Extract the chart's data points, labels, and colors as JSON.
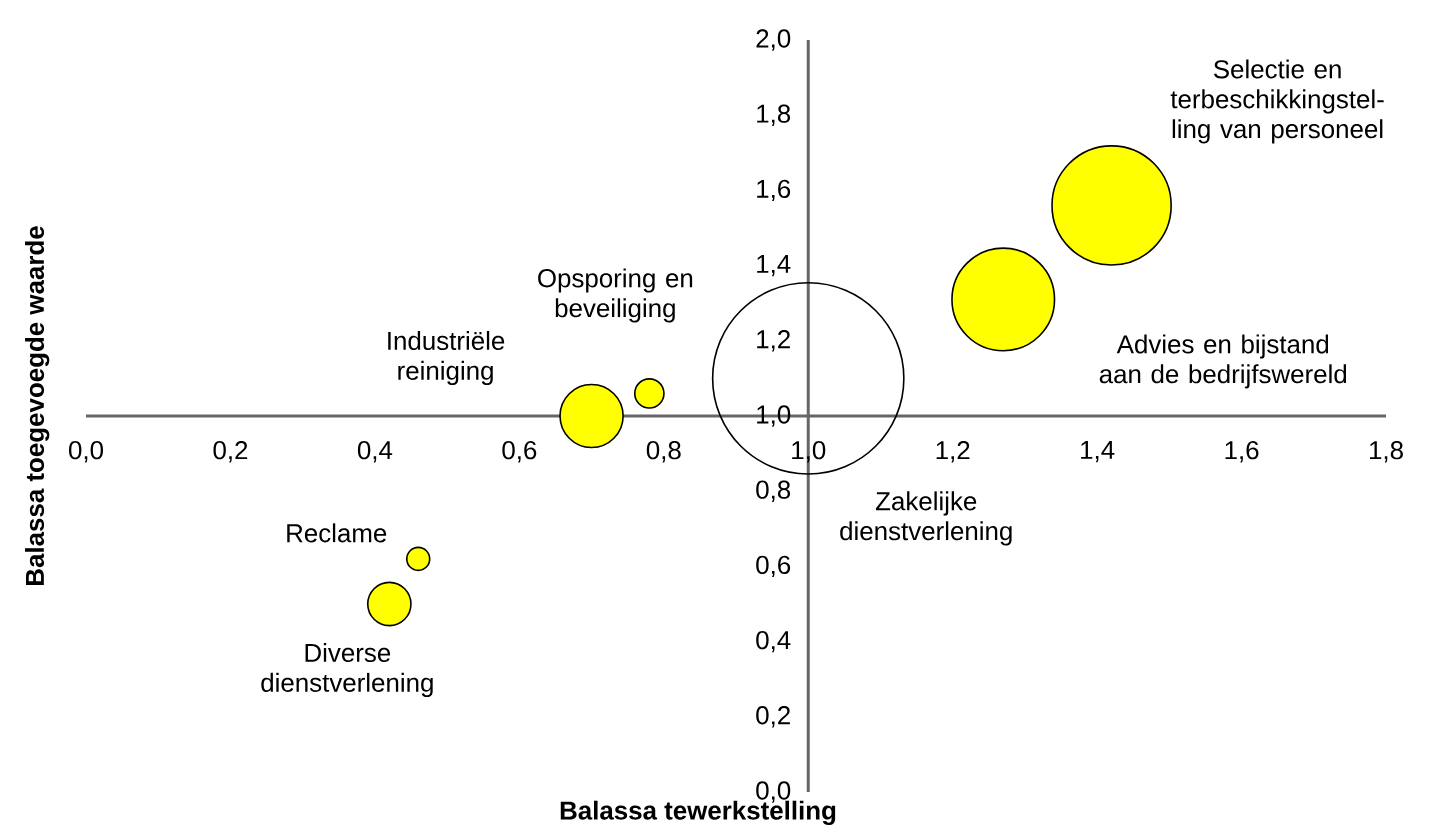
{
  "chart_data": {
    "type": "bubble",
    "xlabel": "Balassa tewerkstelling",
    "ylabel": "Balassa toegevoegde waarde",
    "x": [
      1.42,
      1.27,
      1.0,
      0.7,
      0.78,
      0.46,
      0.42
    ],
    "values": [
      1.56,
      1.31,
      1.1,
      1.0,
      1.06,
      0.62,
      0.5
    ],
    "sizes": [
      0.4,
      0.3,
      1,
      0.12,
      0.03,
      0.02,
      0.06
    ],
    "colors": [
      "#ffff00",
      "#ffff00",
      null,
      "#ffff00",
      "#ffff00",
      "#ffff00",
      "#ffff00"
    ],
    "marker": "circle",
    "annotations": [
      "Selectie en terbeschikkingstel-ling van personeel",
      "Advies en bijstand aan de bedrijfswereld",
      "Zakelijke dienstverlening",
      "Industriële reiniging",
      "Opsporing en beveiliging",
      "Reclame",
      "Diverse dienstverlening"
    ],
    "xlim": [
      0,
      1.8
    ],
    "ylim": [
      0,
      2.0
    ],
    "xticks": [
      {
        "value": 0,
        "label": "0,0"
      },
      {
        "value": 0.2,
        "label": "0,2"
      },
      {
        "value": 0.4,
        "label": "0,4"
      },
      {
        "value": 0.6,
        "label": "0,6"
      },
      {
        "value": 0.8,
        "label": "0,8"
      },
      {
        "value": 1.0,
        "label": "1,0"
      },
      {
        "value": 1.2,
        "label": "1,2"
      },
      {
        "value": 1.4,
        "label": "1,4"
      },
      {
        "value": 1.6,
        "label": "1,6"
      },
      {
        "value": 1.8,
        "label": "1,8"
      }
    ],
    "yticks": [
      {
        "value": 0,
        "label": "0,0"
      },
      {
        "value": 0.2,
        "label": "0,2"
      },
      {
        "value": 0.4,
        "label": "0,4"
      },
      {
        "value": 0.6,
        "label": "0,6"
      },
      {
        "value": 0.8,
        "label": "0,8"
      },
      {
        "value": 1.0,
        "label": "1,0"
      },
      {
        "value": 1.2,
        "label": "1,2"
      },
      {
        "value": 1.4,
        "label": "1,4"
      },
      {
        "value": 1.6,
        "label": "1,6"
      },
      {
        "value": 1.8,
        "label": "1,8"
      },
      {
        "value": 2.0,
        "label": "2,0"
      }
    ]
  }
}
